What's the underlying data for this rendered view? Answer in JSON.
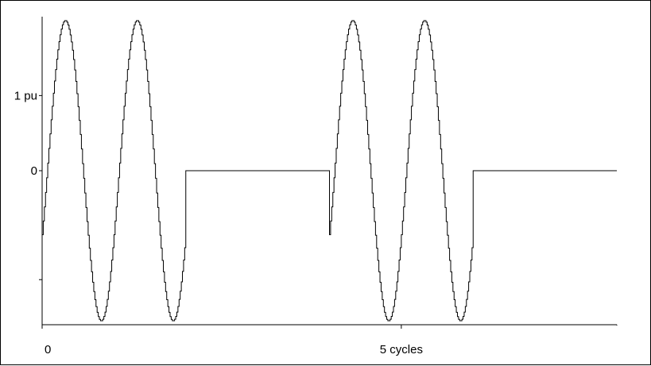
{
  "chart_data": {
    "type": "line",
    "title": "",
    "xlabel": "",
    "ylabel": "",
    "xlim": [
      0,
      8
    ],
    "ylim": [
      -2.05,
      2.05
    ],
    "x_ticks": [
      {
        "value": 0,
        "label": "0"
      },
      {
        "value": 5,
        "label": "5 cycles"
      }
    ],
    "y_ticks": [
      {
        "value": 1,
        "label": "1 pu"
      },
      {
        "value": 0,
        "label": "0"
      },
      {
        "value": -1.45,
        "label": ""
      }
    ],
    "waveform": {
      "amplitude": 2.0,
      "cycles_per_unit": 1,
      "phase_cycles": -0.07,
      "stair_steps_per_cycle": 64,
      "on_intervals": [
        [
          0,
          2.0
        ],
        [
          4.0,
          6.0
        ]
      ]
    },
    "colors": {
      "line": "#000000",
      "axis": "#000000"
    },
    "grid": false,
    "legend": "none"
  }
}
